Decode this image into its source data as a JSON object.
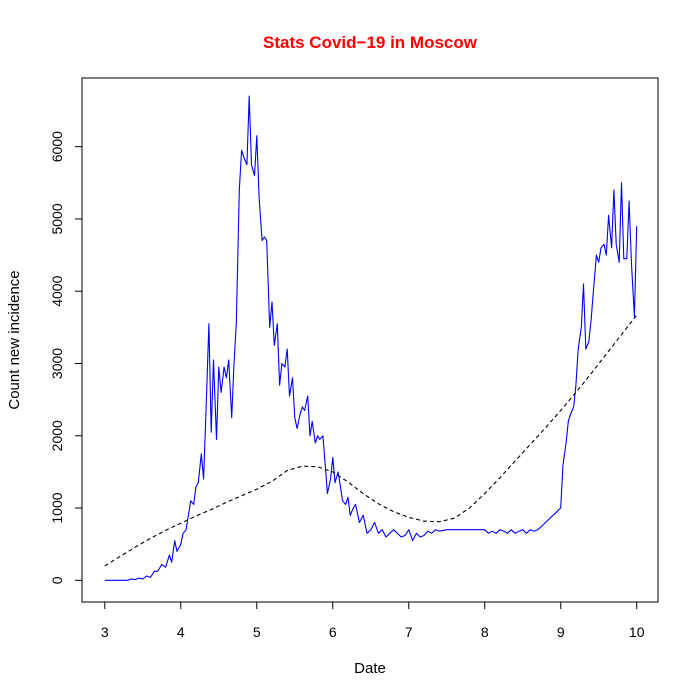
{
  "colors": {
    "title": "#ff0000",
    "observed": "#0000ff",
    "smooth": "#000000",
    "frame": "#000000",
    "background": "#ffffff"
  },
  "chart_data": {
    "type": "line",
    "title": "Stats Covid−19 in Moscow",
    "xlabel": "Date",
    "ylabel": "Count new incidence",
    "xlim": [
      2.7,
      10.28
    ],
    "ylim": [
      -300,
      6950
    ],
    "x_ticks": [
      3,
      4,
      5,
      6,
      7,
      8,
      9,
      10
    ],
    "y_ticks": [
      0,
      1000,
      2000,
      3000,
      4000,
      5000,
      6000
    ],
    "grid": false,
    "legend": "none",
    "series": [
      {
        "style": "solid",
        "color": "#0000ff",
        "x": [
          3.0,
          3.3,
          3.35,
          3.4,
          3.45,
          3.5,
          3.55,
          3.6,
          3.65,
          3.7,
          3.75,
          3.8,
          3.85,
          3.88,
          3.92,
          3.95,
          4.0,
          4.03,
          4.07,
          4.1,
          4.13,
          4.17,
          4.2,
          4.23,
          4.27,
          4.3,
          4.33,
          4.37,
          4.4,
          4.43,
          4.47,
          4.5,
          4.53,
          4.57,
          4.6,
          4.63,
          4.67,
          4.7,
          4.73,
          4.77,
          4.8,
          4.83,
          4.87,
          4.9,
          4.93,
          4.97,
          5.0,
          5.03,
          5.07,
          5.1,
          5.13,
          5.17,
          5.2,
          5.23,
          5.27,
          5.3,
          5.33,
          5.37,
          5.4,
          5.43,
          5.47,
          5.5,
          5.53,
          5.57,
          5.6,
          5.63,
          5.67,
          5.7,
          5.73,
          5.77,
          5.8,
          5.83,
          5.87,
          5.9,
          5.93,
          5.97,
          6.0,
          6.03,
          6.07,
          6.1,
          6.13,
          6.17,
          6.2,
          6.23,
          6.27,
          6.3,
          6.35,
          6.4,
          6.45,
          6.5,
          6.55,
          6.6,
          6.65,
          6.7,
          6.75,
          6.8,
          6.85,
          6.9,
          6.95,
          7.0,
          7.05,
          7.1,
          7.15,
          7.2,
          7.25,
          7.3,
          7.35,
          7.4,
          7.5,
          7.6,
          7.7,
          7.8,
          7.9,
          8.0,
          8.05,
          8.1,
          8.15,
          8.2,
          8.25,
          8.3,
          8.35,
          8.4,
          8.45,
          8.5,
          8.55,
          8.6,
          8.65,
          8.7,
          8.75,
          8.8,
          8.85,
          8.9,
          8.95,
          9.0,
          9.03,
          9.07,
          9.1,
          9.13,
          9.17,
          9.2,
          9.23,
          9.27,
          9.3,
          9.33,
          9.37,
          9.4,
          9.43,
          9.47,
          9.5,
          9.53,
          9.57,
          9.6,
          9.63,
          9.67,
          9.7,
          9.73,
          9.77,
          9.8,
          9.83,
          9.87,
          9.9,
          9.93,
          9.97,
          10.0
        ],
        "y": [
          0,
          0,
          20,
          10,
          30,
          20,
          60,
          40,
          120,
          130,
          220,
          180,
          350,
          250,
          550,
          400,
          500,
          650,
          700,
          900,
          1100,
          1050,
          1300,
          1350,
          1750,
          1400,
          2300,
          3550,
          2050,
          3050,
          1950,
          2950,
          2600,
          2950,
          2800,
          3050,
          2250,
          3000,
          3550,
          5400,
          5950,
          5850,
          5750,
          6700,
          5750,
          5600,
          6150,
          5300,
          4700,
          4750,
          4700,
          3500,
          3850,
          3250,
          3550,
          2700,
          3000,
          2950,
          3200,
          2550,
          2800,
          2250,
          2100,
          2300,
          2400,
          2350,
          2550,
          2000,
          2200,
          1900,
          2000,
          1950,
          2000,
          1600,
          1200,
          1400,
          1700,
          1350,
          1500,
          1300,
          1100,
          1050,
          1150,
          900,
          1000,
          1050,
          800,
          900,
          650,
          700,
          800,
          650,
          700,
          600,
          650,
          700,
          650,
          600,
          620,
          700,
          550,
          650,
          600,
          620,
          680,
          650,
          700,
          680,
          700,
          700,
          700,
          700,
          700,
          700,
          650,
          680,
          650,
          700,
          680,
          650,
          700,
          650,
          680,
          700,
          650,
          700,
          680,
          700,
          750,
          800,
          850,
          900,
          950,
          1000,
          1600,
          1900,
          2200,
          2300,
          2400,
          2700,
          3200,
          3500,
          4100,
          3200,
          3300,
          3600,
          4000,
          4500,
          4400,
          4600,
          4650,
          4500,
          5050,
          4600,
          5400,
          4650,
          4400,
          5500,
          4450,
          4450,
          5250,
          4400,
          3650,
          4900
        ]
      },
      {
        "style": "dashed",
        "color": "#000000",
        "x": [
          3.0,
          3.2,
          3.4,
          3.6,
          3.8,
          4.0,
          4.2,
          4.4,
          4.6,
          4.8,
          5.0,
          5.2,
          5.4,
          5.6,
          5.8,
          6.0,
          6.2,
          6.4,
          6.6,
          6.8,
          7.0,
          7.2,
          7.4,
          7.6,
          7.8,
          8.0,
          8.2,
          8.4,
          8.6,
          8.8,
          9.0,
          9.2,
          9.4,
          9.6,
          9.8,
          10.0
        ],
        "y": [
          200,
          330,
          460,
          580,
          690,
          790,
          890,
          980,
          1080,
          1170,
          1260,
          1370,
          1520,
          1580,
          1570,
          1500,
          1360,
          1200,
          1060,
          950,
          870,
          820,
          810,
          860,
          1000,
          1200,
          1420,
          1650,
          1880,
          2110,
          2350,
          2600,
          2860,
          3130,
          3400,
          3670
        ]
      }
    ]
  }
}
